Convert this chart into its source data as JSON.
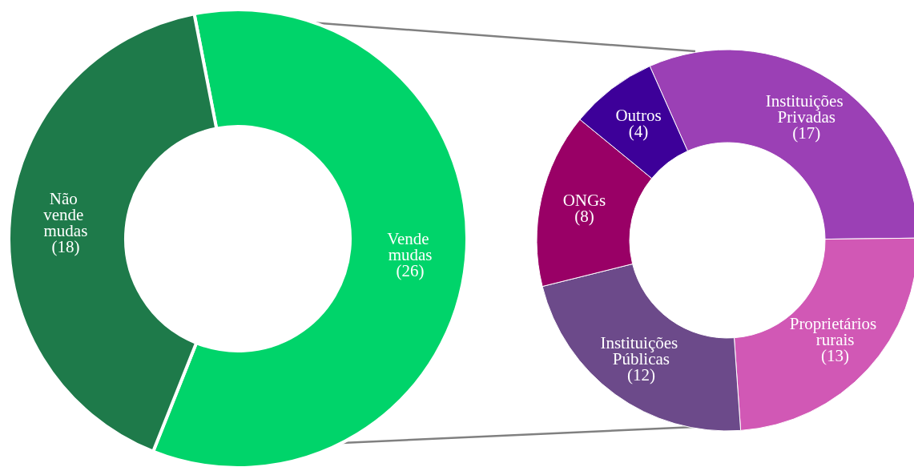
{
  "chart_data": [
    {
      "type": "donut",
      "categories": [
        "Vende mudas",
        "Não vende mudas"
      ],
      "values": [
        26,
        18
      ],
      "colors": [
        "#00d46a",
        "#1e7a4a"
      ],
      "value_labels": [
        "(26)",
        "(18)"
      ]
    },
    {
      "type": "donut",
      "categories": [
        "Instituições Privadas",
        "Proprietários rurais",
        "Instituições Públicas",
        "ONGs",
        "Outros"
      ],
      "values": [
        17,
        13,
        12,
        8,
        4
      ],
      "colors": [
        "#9b40b5",
        "#d158b5",
        "#6c4a8a",
        "#990066",
        "#3d0099"
      ],
      "value_labels": [
        "(17)",
        "(13)",
        "(12)",
        "(8)",
        "(4)"
      ]
    }
  ]
}
